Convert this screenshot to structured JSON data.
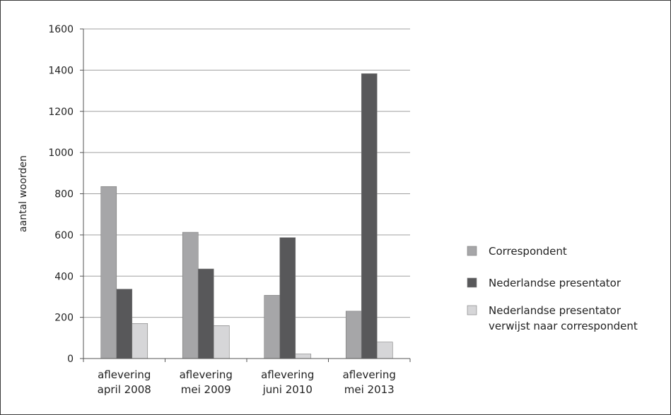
{
  "chart_data": {
    "type": "bar",
    "categories": [
      [
        "aflevering",
        "april 2008"
      ],
      [
        "aflevering",
        "mei 2009"
      ],
      [
        "aflevering",
        "juni 2010"
      ],
      [
        "aflevering",
        "mei 2013"
      ]
    ],
    "series": [
      {
        "name": "Correspondent",
        "values": [
          835,
          613,
          307,
          230
        ],
        "color": "#a6a6a8"
      },
      {
        "name": "Nederlandse presentator",
        "values": [
          337,
          435,
          587,
          1383
        ],
        "color": "#58585a"
      },
      {
        "name": [
          "Nederlandse presentator",
          "verwijst naar correspondent"
        ],
        "values": [
          170,
          160,
          22,
          80
        ],
        "color": "#d6d6d8"
      }
    ],
    "ylabel": "aantal woorden",
    "xlabel": "",
    "ylim": [
      0,
      1600
    ],
    "yticks": [
      0,
      200,
      400,
      600,
      800,
      1000,
      1200,
      1400,
      1600
    ],
    "ytick_labels": [
      "0",
      "200",
      "400",
      "600",
      "800",
      "1000",
      "1200",
      "1400",
      "1600"
    ],
    "grid": true,
    "legend_position": "right",
    "colors": {
      "gridline": "#a0a0a0",
      "axis": "#555555",
      "bar_edge": "#7a7a7a"
    }
  }
}
